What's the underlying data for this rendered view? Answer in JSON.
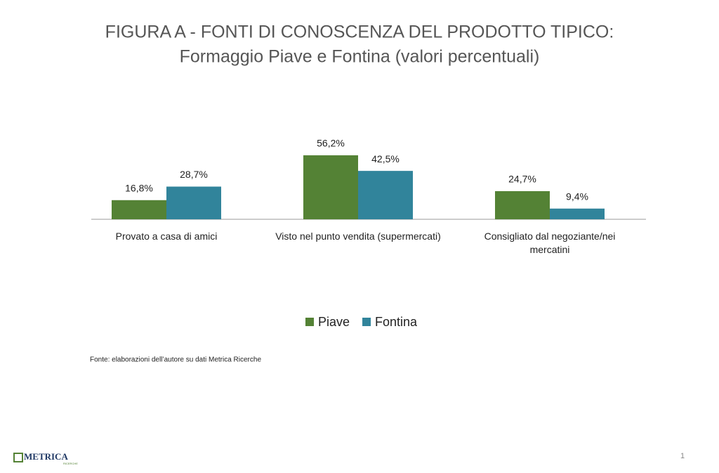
{
  "chart_data": {
    "type": "bar",
    "title": "FIGURA A - FONTI DI CONOSCENZA DEL PRODOTTO TIPICO:",
    "subtitle": "Formaggio Piave e Fontina (valori percentuali)",
    "categories": [
      "Provato a casa di amici",
      "Visto nel punto vendita (supermercati)",
      "Consigliato dal negoziante/nei mercatini"
    ],
    "series": [
      {
        "name": "Piave",
        "color": "#548235",
        "values": [
          16.8,
          56.2,
          24.7
        ],
        "value_labels": [
          "16,8%",
          "56,2%",
          "24,7%"
        ]
      },
      {
        "name": "Fontina",
        "color": "#31849b",
        "values": [
          28.7,
          42.5,
          9.4
        ],
        "value_labels": [
          "28,7%",
          "42,5%",
          "9,4%"
        ]
      }
    ],
    "legend": "bottom",
    "source": "Fonte:  elaborazioni dell’autore su dati Metrica Ricerche"
  },
  "footer": {
    "logo": "METRICA",
    "logo_sub": "RICERCHE",
    "page_number": "1"
  }
}
